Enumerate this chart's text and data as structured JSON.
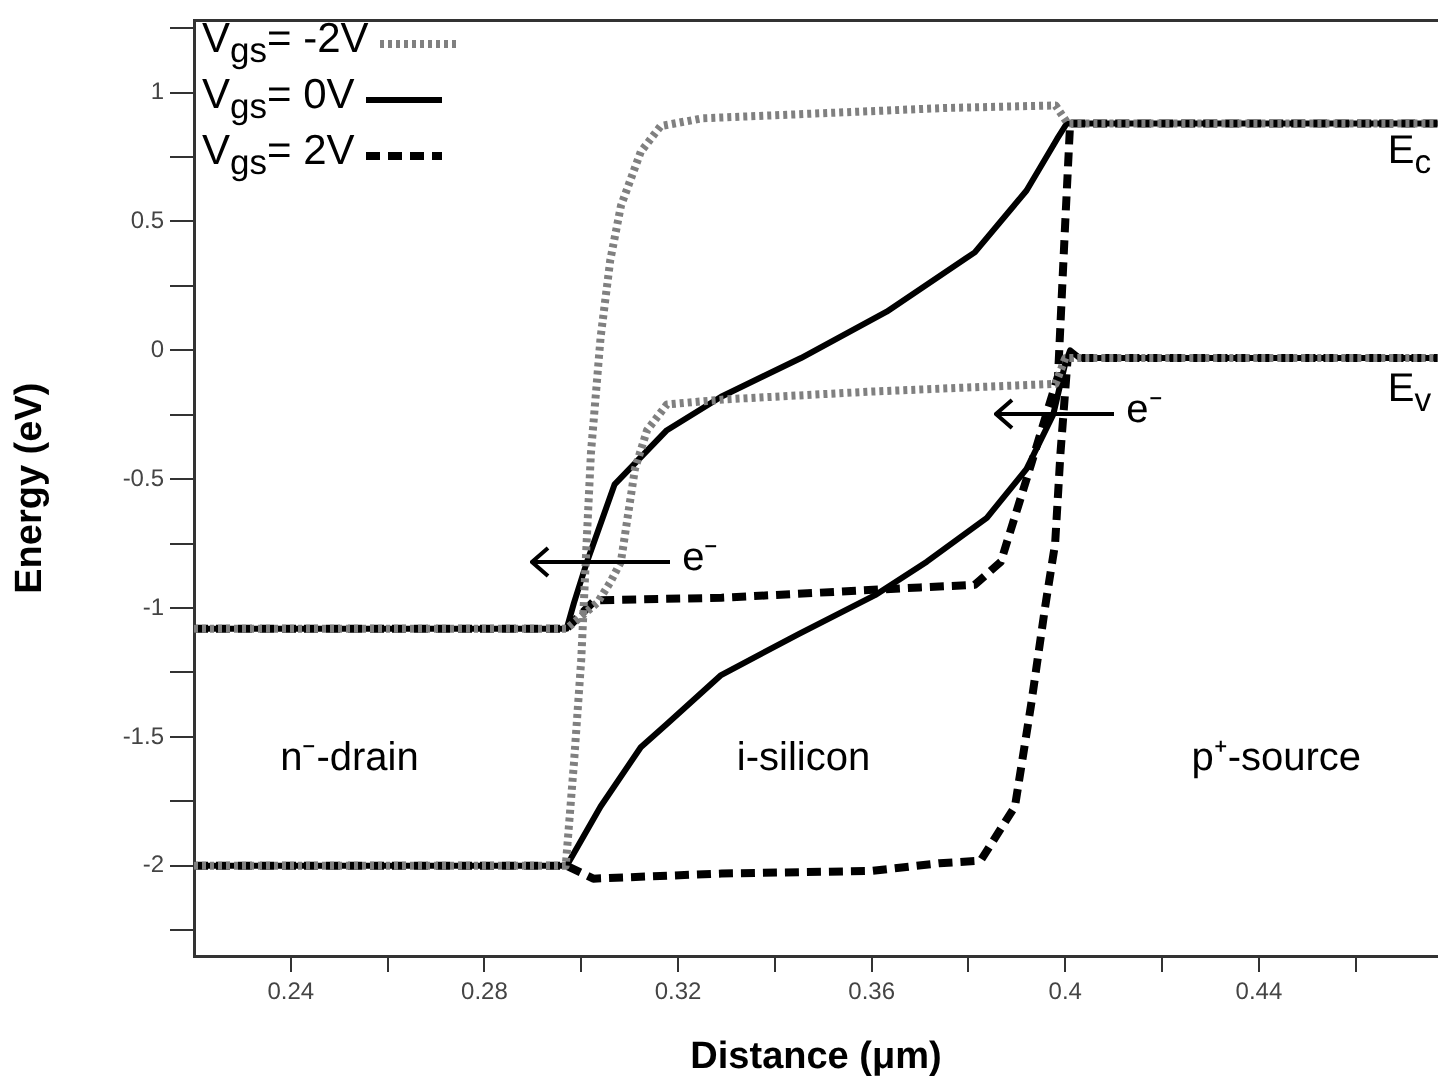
{
  "chart_data": {
    "type": "line",
    "xlabel": "Distance (μm)",
    "ylabel": "Energy (eV)",
    "xlim": [
      0.22,
      0.477
    ],
    "ylim": [
      -2.35,
      1.28
    ],
    "xticks": [
      {
        "value": 0.24,
        "label": "0.24"
      },
      {
        "value": 0.26,
        "label": null
      },
      {
        "value": 0.28,
        "label": "0.28"
      },
      {
        "value": 0.3,
        "label": null
      },
      {
        "value": 0.32,
        "label": "0.32"
      },
      {
        "value": 0.34,
        "label": null
      },
      {
        "value": 0.36,
        "label": "0.36"
      },
      {
        "value": 0.38,
        "label": null
      },
      {
        "value": 0.4,
        "label": "0.4"
      },
      {
        "value": 0.42,
        "label": null
      },
      {
        "value": 0.44,
        "label": "0.44"
      },
      {
        "value": 0.46,
        "label": null
      }
    ],
    "yticks": [
      {
        "value": -2.25,
        "label": null
      },
      -2,
      {
        "value": -1.75,
        "label": null
      },
      -1.5,
      {
        "value": -1.25,
        "label": null
      },
      -1,
      {
        "value": -0.75,
        "label": null
      },
      -0.5,
      {
        "value": -0.25,
        "label": null
      },
      0,
      {
        "value": 0.25,
        "label": null
      },
      0.5,
      {
        "value": 0.75,
        "label": null
      },
      1,
      {
        "value": 1.25,
        "label": null
      }
    ],
    "grid": false,
    "legend": "top left",
    "marker": "none",
    "series": [
      {
        "name": "V$_{gs}$= -2V",
        "color": "#808080",
        "line_style": "dotted",
        "x": [
          0.22,
          0.2968,
          0.2985,
          0.3,
          0.3011,
          0.302,
          0.304,
          0.306,
          0.3082,
          0.3123,
          0.3164,
          0.325,
          0.35,
          0.375,
          0.398,
          0.4005,
          0.477
        ],
        "values": [
          -2,
          -2,
          -1.6,
          -1.2,
          -0.75,
          -0.4,
          0.05,
          0.35,
          0.56,
          0.77,
          0.87,
          0.9,
          0.92,
          0.94,
          0.95,
          0.88,
          0.88
        ]
      },
      {
        "color": "#808080",
        "line_style": "dotted",
        "x": [
          0.22,
          0.297,
          0.3033,
          0.306,
          0.3082,
          0.3111,
          0.3136,
          0.3177,
          0.33,
          0.36,
          0.398,
          0.4,
          0.477
        ],
        "values": [
          -1.08,
          -1.08,
          -0.98,
          -0.9,
          -0.82,
          -0.46,
          -0.31,
          -0.21,
          -0.19,
          -0.16,
          -0.13,
          -0.03,
          -0.03
        ]
      },
      {
        "name": "V$_{gs}$=  0V",
        "color": "#000000",
        "line_style": "solid",
        "x": [
          0.22,
          0.297,
          0.2985,
          0.3012,
          0.3069,
          0.3177,
          0.3289,
          0.3454,
          0.3631,
          0.3813,
          0.392,
          0.3983,
          0.4003,
          0.477
        ],
        "values": [
          -1.08,
          -1.08,
          -0.98,
          -0.82,
          -0.52,
          -0.31,
          -0.18,
          -0.03,
          0.15,
          0.38,
          0.62,
          0.82,
          0.88,
          0.88
        ]
      },
      {
        "color": "#000000",
        "line_style": "solid",
        "x": [
          0.22,
          0.297,
          0.304,
          0.3123,
          0.3177,
          0.3289,
          0.345,
          0.3607,
          0.3714,
          0.3838,
          0.392,
          0.3975,
          0.4,
          0.401,
          0.403,
          0.477
        ],
        "values": [
          -2,
          -2,
          -1.77,
          -1.54,
          -1.45,
          -1.26,
          -1.1,
          -0.95,
          -0.82,
          -0.65,
          -0.46,
          -0.25,
          -0.05,
          0,
          -0.03,
          -0.03
        ]
      },
      {
        "name": "V$_{gs}$=  2V",
        "color": "#000000",
        "line_style": "dashed",
        "x": [
          0.22,
          0.297,
          0.3028,
          0.329,
          0.37,
          0.3813,
          0.3867,
          0.392,
          0.3985,
          0.4,
          0.401,
          0.477
        ],
        "values": [
          -1.08,
          -1.08,
          -0.97,
          -0.96,
          -0.92,
          -0.91,
          -0.82,
          -0.5,
          -0.1,
          0.5,
          0.88,
          0.88
        ]
      },
      {
        "color": "#000000",
        "line_style": "dashed",
        "x": [
          0.22,
          0.297,
          0.3025,
          0.329,
          0.36,
          0.374,
          0.3825,
          0.3896,
          0.3929,
          0.3958,
          0.3979,
          0.399,
          0.4005,
          0.477
        ],
        "values": [
          -2,
          -2,
          -2.05,
          -2.03,
          -2.02,
          -1.99,
          -1.98,
          -1.77,
          -1.38,
          -1,
          -0.75,
          -0.4,
          -0.03,
          -0.03
        ]
      }
    ],
    "annotations": [
      "n⁻-drain",
      "i-silicon",
      "p⁺-source",
      "e⁻",
      "e⁻",
      "E$_{c}$",
      "E$_{v}$"
    ]
  }
}
